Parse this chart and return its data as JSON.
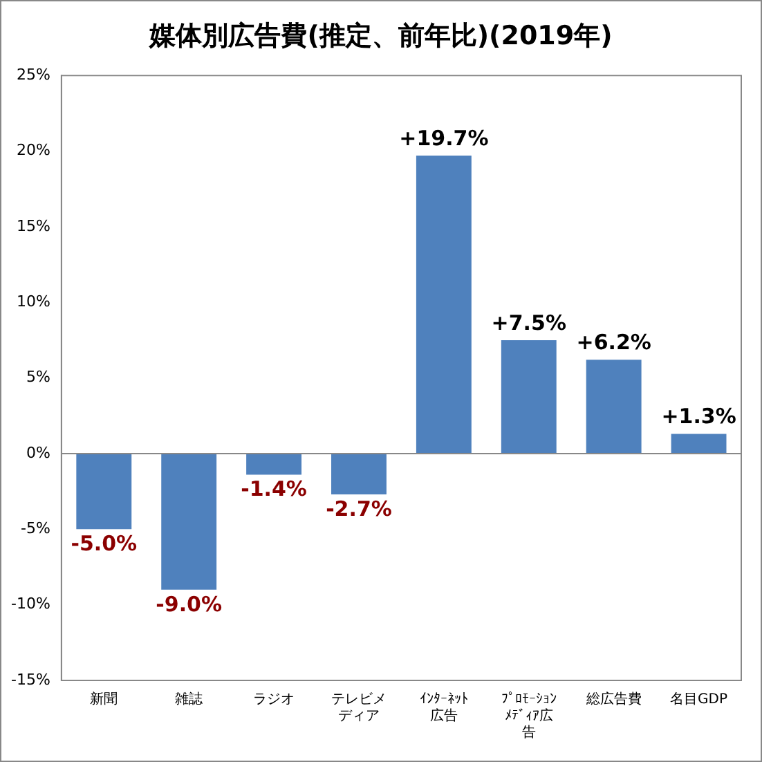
{
  "chart_data": {
    "type": "bar",
    "title": "媒体別広告費(推定、前年比)(2019年)",
    "categories": [
      "新聞",
      "雑誌",
      "ラジオ",
      "テレビメディア",
      "ｲﾝﾀｰﾈｯﾄ広告",
      "ﾌﾟﾛﾓｰｼｮﾝﾒﾃﾞｨｱ広告",
      "総広告費",
      "名目GDP"
    ],
    "values": [
      -5.0,
      -9.0,
      -1.4,
      -2.7,
      19.7,
      7.5,
      6.2,
      1.3
    ],
    "value_labels": [
      "-5.0%",
      "-9.0%",
      "-1.4%",
      "-2.7%",
      "+19.7%",
      "+7.5%",
      "+6.2%",
      "+1.3%"
    ],
    "color": "#4f81bd",
    "ylim": [
      -15,
      25
    ],
    "yticks": [
      {
        "value": -15,
        "label": "-15%"
      },
      {
        "value": -10,
        "label": "-10%"
      },
      {
        "value": -5,
        "label": "-5%"
      },
      {
        "value": 0,
        "label": "0%"
      },
      {
        "value": 5,
        "label": "5%"
      },
      {
        "value": 10,
        "label": "10%"
      },
      {
        "value": 15,
        "label": "15%"
      },
      {
        "value": 20,
        "label": "20%"
      },
      {
        "value": 25,
        "label": "25%"
      }
    ],
    "ref_lines": [
      {
        "axis": "y",
        "value": 0
      }
    ],
    "legend": false
  }
}
